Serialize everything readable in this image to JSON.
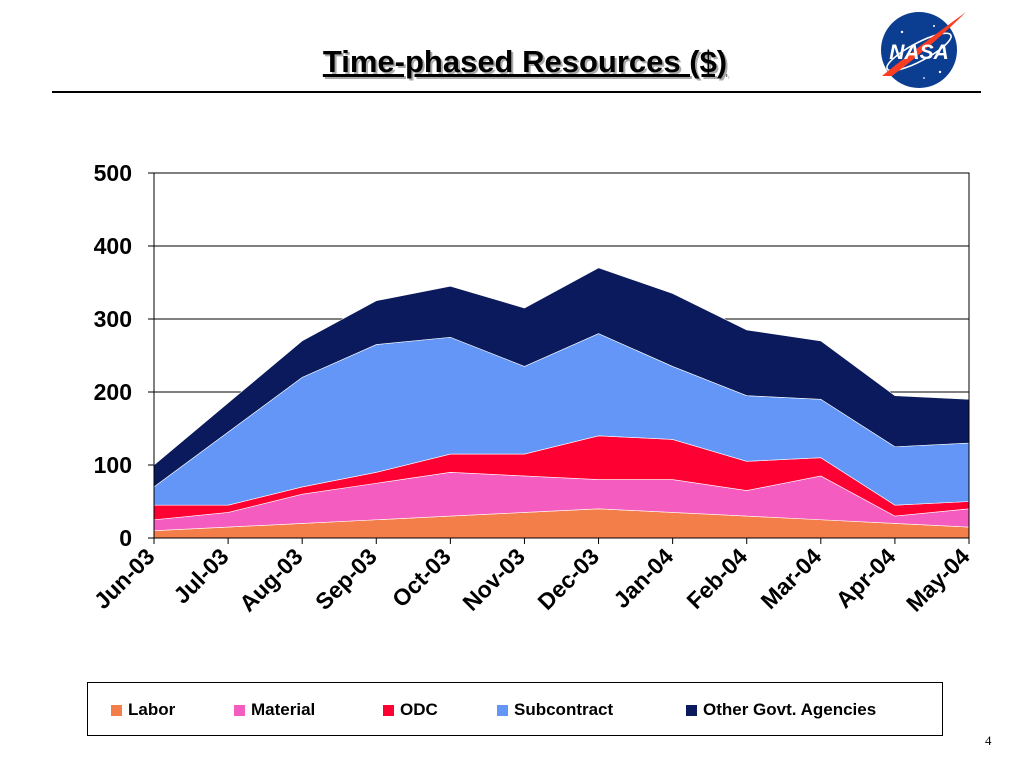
{
  "slide": {
    "title": "Time-phased Resources ($)",
    "page_number": "4",
    "logo_text": "NASA"
  },
  "colors": {
    "Labor": "#f47e4a",
    "Material": "#f45cc0",
    "ODC": "#ff0033",
    "Subcontract": "#6496f8",
    "Other Govt. Agencies": "#0a1a5c"
  },
  "chart_data": {
    "type": "area",
    "stacked": true,
    "title": "",
    "xlabel": "",
    "ylabel": "",
    "ylim": [
      0,
      500
    ],
    "yticks": [
      0,
      100,
      200,
      300,
      400,
      500
    ],
    "grid": true,
    "legend_position": "bottom",
    "categories": [
      "Jun-03",
      "Jul-03",
      "Aug-03",
      "Sep-03",
      "Oct-03",
      "Nov-03",
      "Dec-03",
      "Jan-04",
      "Feb-04",
      "Mar-04",
      "Apr-04",
      "May-04"
    ],
    "series": [
      {
        "name": "Labor",
        "values": [
          10,
          15,
          20,
          25,
          30,
          35,
          40,
          35,
          30,
          25,
          20,
          15
        ]
      },
      {
        "name": "Material",
        "values": [
          15,
          20,
          40,
          50,
          60,
          50,
          40,
          45,
          35,
          60,
          10,
          25
        ]
      },
      {
        "name": "ODC",
        "values": [
          20,
          10,
          10,
          15,
          25,
          30,
          60,
          55,
          40,
          25,
          15,
          10
        ]
      },
      {
        "name": "Subcontract",
        "values": [
          25,
          100,
          150,
          175,
          160,
          120,
          140,
          100,
          90,
          80,
          80,
          80
        ]
      },
      {
        "name": "Other Govt. Agencies",
        "values": [
          30,
          40,
          50,
          60,
          70,
          80,
          90,
          100,
          90,
          80,
          70,
          60
        ]
      }
    ]
  }
}
